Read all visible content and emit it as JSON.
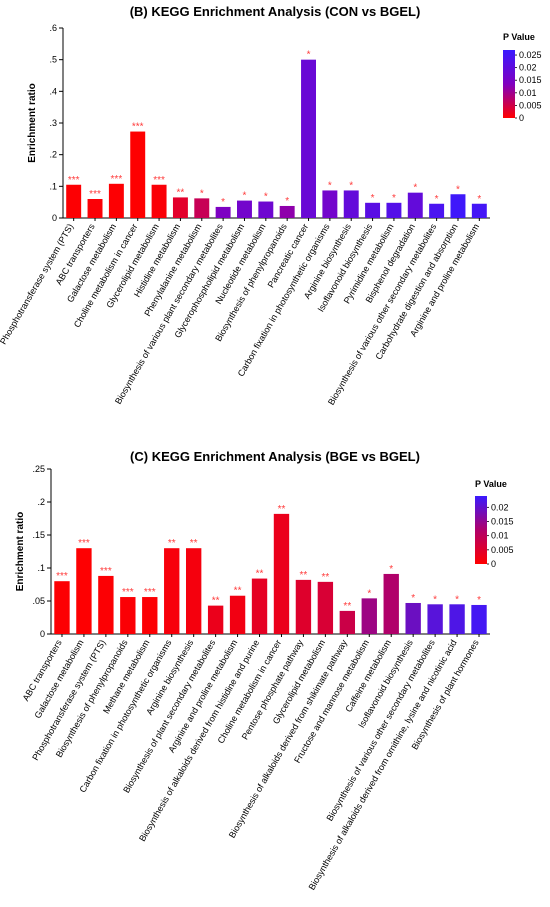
{
  "chart_data": [
    {
      "type": "bar",
      "title": "(B) KEGG Enrichment Analysis (CON vs BGEL)",
      "ylabel": "Enrichment ratio",
      "ylim": [
        0,
        0.6
      ],
      "yticks": [
        0,
        0.1,
        0.2,
        0.3,
        0.4,
        0.5,
        0.6
      ],
      "legend": {
        "title": "P Value",
        "placement": "top-right",
        "min": 0,
        "max": 0.027,
        "ticks": [
          0,
          0.005,
          0.01,
          0.015,
          0.02,
          0.025
        ],
        "colors": [
          "#ff0000",
          "#8000c0",
          "#3a1aff"
        ]
      },
      "categories": [
        "Phosphotransferase system (PTS)",
        "ABC transporters",
        "Galactose metabolism",
        "Choline metabolism in cancer",
        "Glycerolipid metabolism",
        "Histidine metabolism",
        "Phenylalanine metabolism",
        "Biosynthesis of various plant secondary metabolites",
        "Glycerophospholipid metabolism",
        "Nucleotide metabolism",
        "Biosynthesis of phenylpropanoids",
        "Pancreatic cancer",
        "Carbon fixation in photosynthetic organisms",
        "Arginine biosynthesis",
        "Isoflavonoid biosynthesis",
        "Pyrimidine metabolism",
        "Bisphenol degradation",
        "Biosynthesis of various other secondary metabolites",
        "Carbohydrate digestion and absorption",
        "Arginine and proline metabolism"
      ],
      "values": [
        0.105,
        0.06,
        0.108,
        0.273,
        0.105,
        0.065,
        0.062,
        0.035,
        0.055,
        0.052,
        0.038,
        0.5,
        0.087,
        0.087,
        0.048,
        0.048,
        0.08,
        0.045,
        0.075,
        0.045
      ],
      "pvalues": [
        0.0002,
        0.0004,
        0.0002,
        0.0001,
        0.0005,
        0.003,
        0.006,
        0.014,
        0.016,
        0.017,
        0.012,
        0.018,
        0.016,
        0.019,
        0.021,
        0.022,
        0.019,
        0.024,
        0.026,
        0.025
      ],
      "significance": [
        "***",
        "***",
        "***",
        "***",
        "***",
        "**",
        "*",
        "*",
        "*",
        "*",
        "*",
        "*",
        "*",
        "*",
        "*",
        "*",
        "*",
        "*",
        "*",
        "*"
      ]
    },
    {
      "type": "bar",
      "title": "(C) KEGG Enrichment Analysis (BGE vs BGEL)",
      "ylabel": "Enrichment ratio",
      "ylim": [
        0,
        0.25
      ],
      "yticks": [
        0,
        0.05,
        0.1,
        0.15,
        0.2,
        0.25
      ],
      "legend": {
        "title": "P Value",
        "placement": "top-right",
        "min": 0,
        "max": 0.024,
        "ticks": [
          0,
          0.005,
          0.01,
          0.015,
          0.02
        ],
        "colors": [
          "#ff0000",
          "#b0006a",
          "#3a1aff"
        ]
      },
      "categories": [
        "ABC transporters",
        "Galactose metabolism",
        "Phosphotransferase system (PTS)",
        "Biosynthesis of phenylpropanoids",
        "Methane metabolism",
        "Carbon fixation in photosynthetic organisms",
        "Arginine biosynthesis",
        "Biosynthesis of plant secondary metabolites",
        "Arginine and proline metabolism",
        "Biosynthesis of alkaloids derived from histidine and purine",
        "Choline metabolism in cancer",
        "Pentose phosphate pathway",
        "Glycerolipid metabolism",
        "Biosynthesis of alkaloids derived from shikimate pathway",
        "Fructose and mannose metabolism",
        "Caffeine metabolism",
        "Isoflavonoid biosynthesis",
        "Biosynthesis of various other secondary metabolites",
        "Biosynthesis of alkaloids derived from ornithine, lysine and nicotinic acid",
        "Biosynthesis of plant hormones"
      ],
      "values": [
        0.08,
        0.13,
        0.088,
        0.056,
        0.056,
        0.13,
        0.13,
        0.043,
        0.058,
        0.084,
        0.182,
        0.082,
        0.079,
        0.035,
        0.054,
        0.091,
        0.047,
        0.045,
        0.045,
        0.044
      ],
      "pvalues": [
        0.0003,
        0.0002,
        0.0004,
        0.0006,
        0.0005,
        0.0012,
        0.0015,
        0.003,
        0.002,
        0.004,
        0.003,
        0.005,
        0.006,
        0.008,
        0.014,
        0.012,
        0.019,
        0.021,
        0.022,
        0.023
      ],
      "significance": [
        "***",
        "***",
        "***",
        "***",
        "***",
        "**",
        "**",
        "**",
        "**",
        "**",
        "**",
        "**",
        "**",
        "**",
        "*",
        "*",
        "*",
        "*",
        "*",
        "*"
      ]
    }
  ]
}
